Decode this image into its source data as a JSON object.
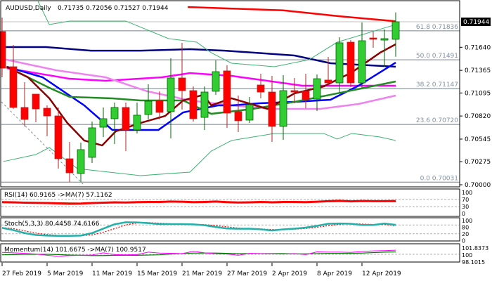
{
  "header": {
    "symbol": "AUDUSD,Daily",
    "ohlc": "0.71735 0.72056 0.71527 0.71944"
  },
  "colors": {
    "bull": "#32cd32",
    "bear": "#ff0000",
    "bull_border": "#006400",
    "bear_border": "#b22222"
  },
  "chart_data": [
    {
      "type": "candlestick",
      "title": "AUDUSD,Daily",
      "ylim": [
        0.69985,
        0.7223
      ],
      "price_ticks": [
        "0.71640",
        "0.71365",
        "0.71095",
        "0.70820",
        "0.70545",
        "0.70275",
        "0.70000"
      ],
      "current_price": "0.71944",
      "x_labels": [
        {
          "index": 0,
          "label": "27 Feb 2019"
        },
        {
          "index": 4,
          "label": "5 Mar 2019"
        },
        {
          "index": 8,
          "label": "11 Mar 2019"
        },
        {
          "index": 12,
          "label": "15 Mar 2019"
        },
        {
          "index": 16,
          "label": "21 Mar 2019"
        },
        {
          "index": 20,
          "label": "27 Mar 2019"
        },
        {
          "index": 24,
          "label": "2 Apr 2019"
        },
        {
          "index": 28,
          "label": "8 Apr 2019"
        },
        {
          "index": 32,
          "label": "12 Apr 2019"
        }
      ],
      "ohlc": [
        [
          0.71827,
          0.71994,
          0.71282,
          0.71391
        ],
        [
          0.71408,
          0.71668,
          0.70905,
          0.70922
        ],
        [
          0.70922,
          0.71223,
          0.70696,
          0.70779
        ],
        [
          0.71081,
          0.71081,
          0.70746,
          0.70905
        ],
        [
          0.70913,
          0.70947,
          0.70578,
          0.70821
        ],
        [
          0.70821,
          0.70922,
          0.70193,
          0.7031
        ],
        [
          0.7031,
          0.70511,
          0.70034,
          0.70142
        ],
        [
          0.70134,
          0.70503,
          0.70034,
          0.70419
        ],
        [
          0.70327,
          0.70754,
          0.7026,
          0.70679
        ],
        [
          0.70687,
          0.70922,
          0.7057,
          0.70788
        ],
        [
          0.70788,
          0.7098,
          0.70486,
          0.70922
        ],
        [
          0.70922,
          0.7098,
          0.70402,
          0.70654
        ],
        [
          0.70654,
          0.7098,
          0.70612,
          0.7083
        ],
        [
          0.70838,
          0.71198,
          0.70779,
          0.70997
        ],
        [
          0.71006,
          0.71115,
          0.70779,
          0.70863
        ],
        [
          0.70872,
          0.71508,
          0.70553,
          0.71274
        ],
        [
          0.71274,
          0.71693,
          0.70897,
          0.71123
        ],
        [
          0.71123,
          0.71173,
          0.70754,
          0.70788
        ],
        [
          0.70804,
          0.71173,
          0.70654,
          0.71106
        ],
        [
          0.71115,
          0.71483,
          0.71073,
          0.71349
        ],
        [
          0.71358,
          0.71425,
          0.70679,
          0.70855
        ],
        [
          0.70872,
          0.71064,
          0.70629,
          0.70763
        ],
        [
          0.70771,
          0.71048,
          0.70737,
          0.70955
        ],
        [
          0.7119,
          0.71324,
          0.71031,
          0.71106
        ],
        [
          0.71106,
          0.71299,
          0.70511,
          0.70696
        ],
        [
          0.70696,
          0.71307,
          0.70536,
          0.71123
        ],
        [
          0.71123,
          0.71274,
          0.70972,
          0.71106
        ],
        [
          0.71115,
          0.71324,
          0.70913,
          0.71014
        ],
        [
          0.71022,
          0.71316,
          0.7088,
          0.71265
        ],
        [
          0.71249,
          0.71525,
          0.71182,
          0.71215
        ],
        [
          0.71215,
          0.7176,
          0.71098,
          0.71693
        ],
        [
          0.71701,
          0.71726,
          0.71165,
          0.71215
        ],
        [
          0.71215,
          0.71936,
          0.71156,
          0.71718
        ],
        [
          0.71751,
          0.71827,
          0.71634,
          0.71735
        ],
        [
          0.71726,
          0.71852,
          0.71408,
          0.71743
        ],
        [
          0.71735,
          0.72056,
          0.71527,
          0.71944
        ]
      ],
      "fibonacci": [
        {
          "label": "61.8 0.71836",
          "price": 0.71836
        },
        {
          "label": "50.0 0.71491",
          "price": 0.71491
        },
        {
          "label": "38.2 0.71147",
          "price": 0.71147
        },
        {
          "label": "23.6 0.70720",
          "price": 0.7072
        },
        {
          "label": "0.0 0.70031",
          "price": 0.70031
        }
      ],
      "overlays": [
        {
          "name": "ma-red",
          "color": "#ff0000",
          "width": 2.5,
          "points": [
            [
              16.5,
              0.7212
            ],
            [
              25,
              0.7208
            ],
            [
              30,
              0.7201
            ],
            [
              35,
              0.7195
            ]
          ]
        },
        {
          "name": "ma-navy",
          "color": "#000080",
          "width": 2.5,
          "points": [
            [
              -0.2,
              0.71642
            ],
            [
              3.9,
              0.71642
            ],
            [
              7.9,
              0.716
            ],
            [
              12.3,
              0.716
            ],
            [
              16.7,
              0.71617
            ],
            [
              19.8,
              0.716
            ],
            [
              26,
              0.71542
            ],
            [
              29.2,
              0.7145
            ],
            [
              35,
              0.71408
            ]
          ]
        },
        {
          "name": "ma-magenta",
          "color": "#ff00ff",
          "width": 2.5,
          "points": [
            [
              0.4,
              0.71391
            ],
            [
              6,
              0.71265
            ],
            [
              9.2,
              0.7124
            ],
            [
              14.2,
              0.71282
            ],
            [
              16.7,
              0.71332
            ],
            [
              20.4,
              0.71299
            ],
            [
              26.7,
              0.71182
            ],
            [
              35,
              0.71182
            ]
          ]
        },
        {
          "name": "ma-violet",
          "color": "#ee82ee",
          "width": 2.5,
          "points": [
            [
              0.1,
              0.715
            ],
            [
              4.8,
              0.71366
            ],
            [
              9.2,
              0.71282
            ],
            [
              12.9,
              0.71115
            ],
            [
              16.7,
              0.71006
            ],
            [
              20.4,
              0.70947
            ],
            [
              24.2,
              0.70905
            ],
            [
              28.3,
              0.70905
            ],
            [
              31.7,
              0.70964
            ],
            [
              35,
              0.71064
            ]
          ]
        },
        {
          "name": "ma-blue",
          "color": "#0000ff",
          "width": 2.5,
          "points": [
            [
              0.4,
              0.71408
            ],
            [
              3.6,
              0.71282
            ],
            [
              7.3,
              0.70947
            ],
            [
              9.8,
              0.70654
            ],
            [
              13.9,
              0.70654
            ],
            [
              16.1,
              0.70863
            ],
            [
              19.2,
              0.70947
            ],
            [
              20.4,
              0.70947
            ],
            [
              22.9,
              0.70972
            ],
            [
              26,
              0.70989
            ],
            [
              29.2,
              0.71014
            ],
            [
              31.7,
              0.71182
            ],
            [
              35,
              0.71458
            ]
          ]
        },
        {
          "name": "ma-green",
          "color": "#228b22",
          "width": 2.5,
          "points": [
            [
              0.4,
              0.71408
            ],
            [
              4.2,
              0.71156
            ],
            [
              6,
              0.71048
            ],
            [
              9.8,
              0.71031
            ],
            [
              12.3,
              0.71006
            ],
            [
              16.1,
              0.71006
            ],
            [
              18.6,
              0.70846
            ],
            [
              22.3,
              0.70905
            ],
            [
              26,
              0.70989
            ],
            [
              29.8,
              0.7109
            ],
            [
              35,
              0.71232
            ]
          ]
        },
        {
          "name": "ma-darkred",
          "color": "#8b0000",
          "width": 2.5,
          "points": [
            [
              0.4,
              0.71408
            ],
            [
              2.3,
              0.71282
            ],
            [
              4.2,
              0.71031
            ],
            [
              5.8,
              0.70737
            ],
            [
              7.3,
              0.70528
            ],
            [
              8.9,
              0.70469
            ],
            [
              10.1,
              0.70637
            ],
            [
              12.3,
              0.70737
            ],
            [
              14.5,
              0.70821
            ],
            [
              16.1,
              0.71006
            ],
            [
              17.9,
              0.71073
            ],
            [
              18.6,
              0.70947
            ],
            [
              20.4,
              0.71031
            ],
            [
              23.6,
              0.70905
            ],
            [
              26,
              0.7109
            ],
            [
              28.6,
              0.71173
            ],
            [
              31.1,
              0.71341
            ],
            [
              33.6,
              0.71575
            ],
            [
              35,
              0.71676
            ]
          ]
        },
        {
          "name": "bollinger-upper",
          "color": "#3cb371",
          "width": 1,
          "points": [
            [
              3.2,
              0.722
            ],
            [
              4.2,
              0.71911
            ],
            [
              6,
              0.71953
            ],
            [
              11,
              0.71953
            ],
            [
              14.8,
              0.71743
            ],
            [
              17.3,
              0.71701
            ],
            [
              18.6,
              0.71575
            ],
            [
              20.4,
              0.7145
            ],
            [
              24.2,
              0.71408
            ],
            [
              27.3,
              0.71492
            ],
            [
              29.8,
              0.71701
            ],
            [
              35,
              0.71911
            ]
          ]
        },
        {
          "name": "bollinger-lower",
          "color": "#3cb371",
          "width": 1,
          "points": [
            [
              0.1,
              0.70277
            ],
            [
              3,
              0.7036
            ],
            [
              4.2,
              0.70444
            ],
            [
              6.7,
              0.70193
            ],
            [
              12.3,
              0.70109
            ],
            [
              16.7,
              0.70151
            ],
            [
              18.6,
              0.70402
            ],
            [
              20.4,
              0.70528
            ],
            [
              24.2,
              0.70612
            ],
            [
              28.6,
              0.70612
            ],
            [
              29.8,
              0.70545
            ],
            [
              31.1,
              0.70612
            ],
            [
              33.6,
              0.7057
            ],
            [
              35,
              0.70528
            ]
          ]
        }
      ]
    },
    {
      "type": "line",
      "title": "RSI(14) 60.9165  ->MA(7) 57.1162",
      "ylim": [
        0,
        100
      ],
      "levels": [
        "100",
        "70",
        "30",
        "0"
      ],
      "series": [
        {
          "name": "RSI",
          "color": "#ff0000",
          "values": [
            55,
            54,
            52,
            51,
            50,
            48,
            46,
            47,
            50,
            52,
            54,
            53,
            55,
            56,
            56,
            58,
            57,
            55,
            56,
            58,
            55,
            53,
            54,
            56,
            54,
            56,
            56,
            55,
            57,
            60,
            62,
            59,
            61,
            60,
            60,
            61
          ]
        },
        {
          "name": "MA",
          "color": "#008000",
          "values": [
            55,
            55,
            54,
            53,
            52,
            51,
            50,
            49,
            49,
            50,
            51,
            52,
            53,
            54,
            55,
            56,
            56,
            56,
            56,
            56,
            56,
            55,
            55,
            55,
            55,
            55,
            55,
            55,
            56,
            57,
            58,
            58,
            59,
            59,
            59,
            57
          ]
        }
      ]
    },
    {
      "type": "line",
      "title": "Stoch(5,3,3) 80.4458 74.6166",
      "ylim": [
        0,
        100
      ],
      "levels": [
        "100",
        "80",
        "20",
        "0"
      ],
      "series": [
        {
          "name": "Main",
          "color": "#20b2aa",
          "values": [
            60,
            45,
            25,
            12,
            8,
            6,
            6,
            8,
            25,
            55,
            85,
            98,
            97,
            92,
            86,
            86,
            86,
            84,
            78,
            66,
            56,
            54,
            55,
            50,
            42,
            50,
            55,
            62,
            74,
            88,
            90,
            88,
            80,
            80,
            90,
            80.4
          ]
        },
        {
          "name": "Signal",
          "color": "#ff0000",
          "values": [
            62,
            55,
            40,
            25,
            15,
            9,
            7,
            7,
            13,
            30,
            55,
            80,
            93,
            96,
            92,
            88,
            86,
            85,
            82,
            76,
            67,
            59,
            55,
            53,
            49,
            47,
            51,
            56,
            64,
            75,
            84,
            89,
            86,
            83,
            83,
            74.6
          ]
        }
      ]
    },
    {
      "type": "line",
      "title": "Momentum(14) 101.6675  ->MA(7) 100.9517",
      "ylim": [
        98.1015,
        101.8373
      ],
      "levels": [
        "101.8373",
        "100",
        "98.1015"
      ],
      "series": [
        {
          "name": "Momentum",
          "color": "#ff00ff",
          "values": [
            100.8,
            100.6,
            100.4,
            100.1,
            99.6,
            99.2,
            99.5,
            99.6,
            99.7,
            100.6,
            99.9,
            99.8,
            99.9,
            100.9,
            100.5,
            100.4,
            100.3,
            101.2,
            100.6,
            100.2,
            100.1,
            99.6,
            100.4,
            100.3,
            100.2,
            100.1,
            100.3,
            99.9,
            101.0,
            100.9,
            100.9,
            100.8,
            101.1,
            101.4,
            101.5,
            101.67
          ]
        },
        {
          "name": "MA",
          "color": "#008000",
          "values": [
            99.8,
            99.9,
            100,
            100,
            100,
            99.9,
            99.7,
            99.6,
            99.5,
            99.5,
            99.6,
            99.6,
            99.6,
            99.7,
            99.8,
            100.1,
            100.3,
            100.5,
            100.5,
            100.5,
            100.4,
            100.3,
            100.3,
            100.3,
            100.3,
            100.3,
            100.2,
            100.2,
            100.3,
            100.4,
            100.4,
            100.4,
            100.5,
            100.7,
            100.9,
            100.95
          ]
        }
      ]
    }
  ]
}
